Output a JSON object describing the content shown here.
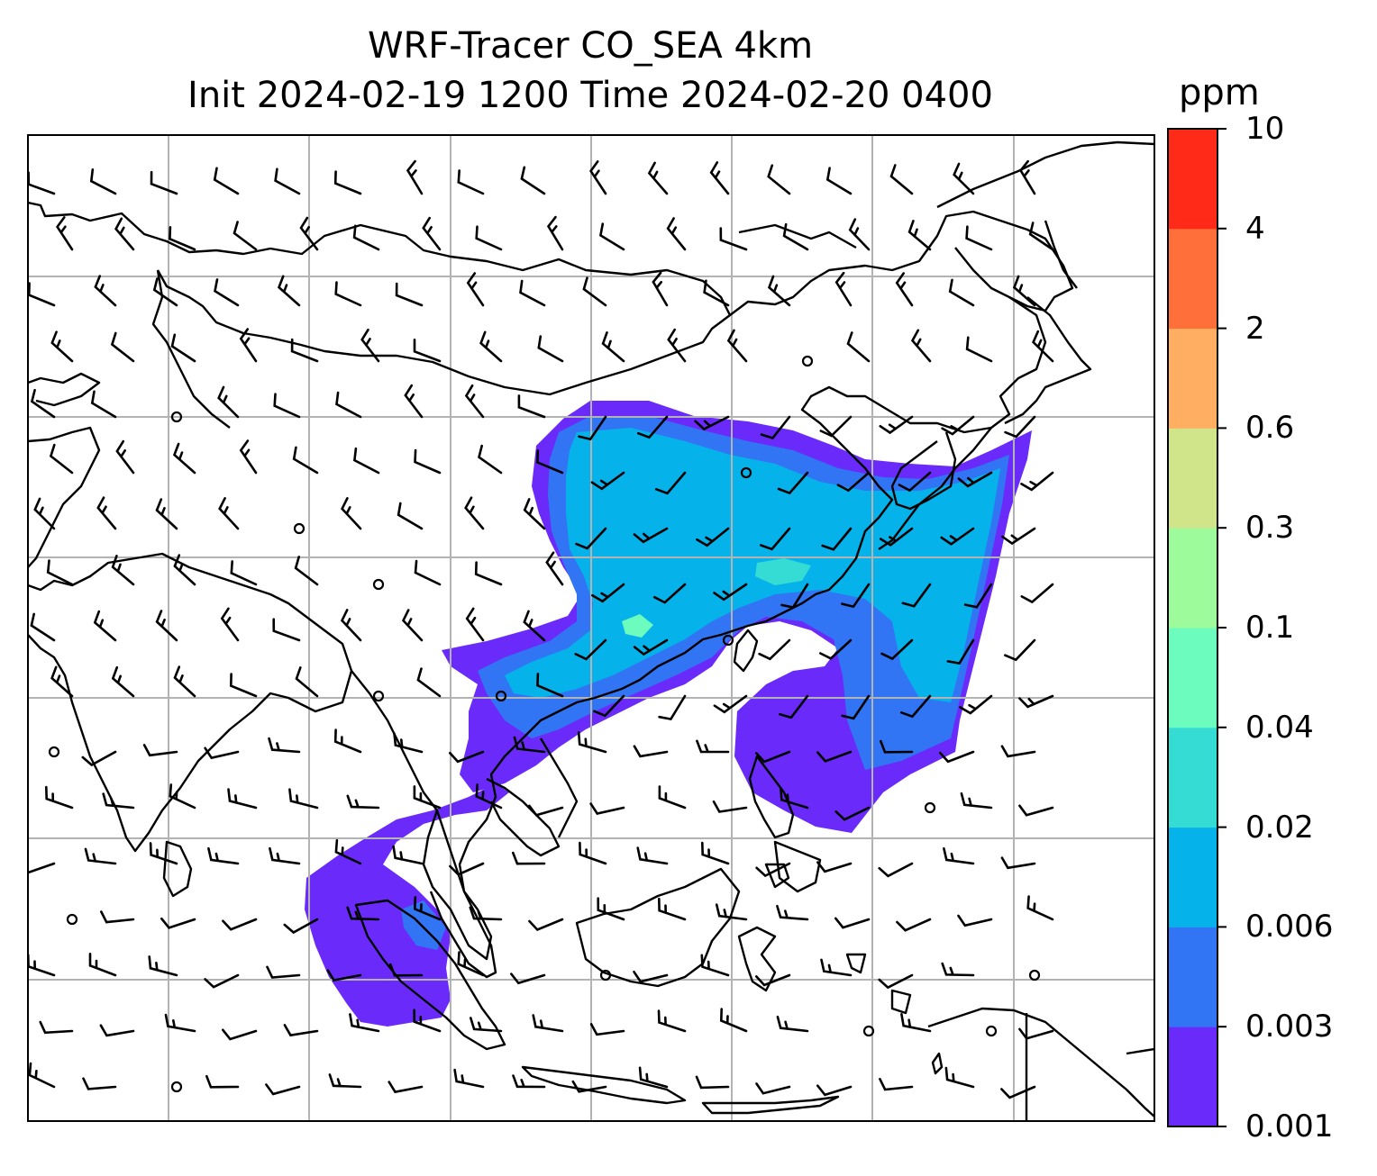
{
  "title": {
    "line1": "WRF-Tracer CO_SEA 4km",
    "line2": "Init 2024-02-19 1200 Time 2024-02-20 0400"
  },
  "colorbar": {
    "unit": "ppm",
    "ticks": [
      "10",
      "4",
      "2",
      "0.6",
      "0.3",
      "0.1",
      "0.04",
      "0.02",
      "0.006",
      "0.003",
      "0.001"
    ],
    "colors": [
      "#6a2bfa",
      "#3275f4",
      "#06b2ea",
      "#34dcd4",
      "#6cfcbd",
      "#9dfb9c",
      "#d0e48a",
      "#ffae62",
      "#ff6f3a",
      "#ff2a17"
    ]
  },
  "map": {
    "gridlines": true,
    "coastlines": true,
    "wind_barbs": true,
    "plume_colors": {
      "lowest": "#6a2bfa",
      "low": "#3275f4",
      "mid": "#06b2ea",
      "high": "#34dcd4",
      "peak": "#6cfcbd"
    }
  }
}
